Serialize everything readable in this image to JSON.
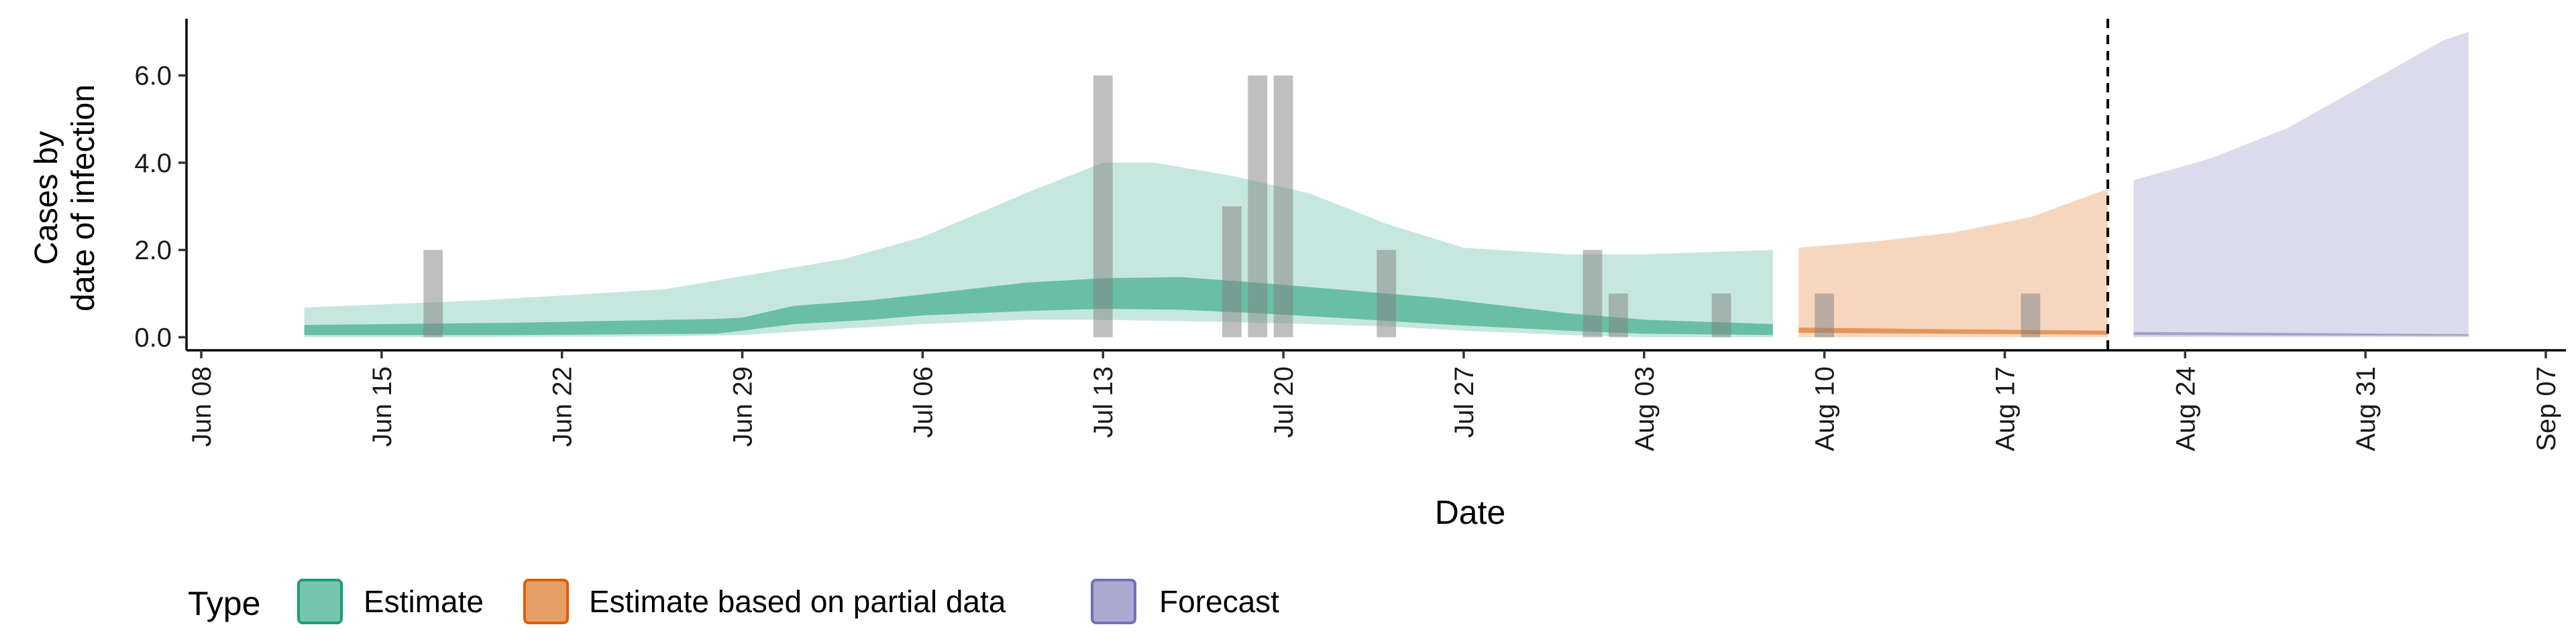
{
  "chart_data": {
    "type": "area",
    "title": "",
    "xlabel": "Date",
    "ylabel_lines": [
      "Cases by",
      "date of infection"
    ],
    "ylim": [
      -0.3,
      7.3
    ],
    "yticks": [
      {
        "value": 0,
        "label": "0.0"
      },
      {
        "value": 2,
        "label": "2.0"
      },
      {
        "value": 4,
        "label": "4.0"
      },
      {
        "value": 6,
        "label": "6.0"
      }
    ],
    "xlim": [
      "2020-06-08",
      "2020-09-07"
    ],
    "xticks": [
      {
        "date": "2020-06-08",
        "label": "Jun 08"
      },
      {
        "date": "2020-06-15",
        "label": "Jun 15"
      },
      {
        "date": "2020-06-22",
        "label": "Jun 22"
      },
      {
        "date": "2020-06-29",
        "label": "Jun 29"
      },
      {
        "date": "2020-07-06",
        "label": "Jul 06"
      },
      {
        "date": "2020-07-13",
        "label": "Jul 13"
      },
      {
        "date": "2020-07-20",
        "label": "Jul 20"
      },
      {
        "date": "2020-07-27",
        "label": "Jul 27"
      },
      {
        "date": "2020-08-03",
        "label": "Aug 03"
      },
      {
        "date": "2020-08-10",
        "label": "Aug 10"
      },
      {
        "date": "2020-08-17",
        "label": "Aug 17"
      },
      {
        "date": "2020-08-24",
        "label": "Aug 24"
      },
      {
        "date": "2020-08-31",
        "label": "Aug 31"
      },
      {
        "date": "2020-09-07",
        "label": "Sep 07"
      }
    ],
    "forecast_line_date": "2020-08-21",
    "observed_cases": [
      {
        "date": "2020-06-17",
        "value": 2
      },
      {
        "date": "2020-07-13",
        "value": 6
      },
      {
        "date": "2020-07-18",
        "value": 3
      },
      {
        "date": "2020-07-19",
        "value": 6
      },
      {
        "date": "2020-07-20",
        "value": 6
      },
      {
        "date": "2020-07-24",
        "value": 2
      },
      {
        "date": "2020-08-01",
        "value": 2
      },
      {
        "date": "2020-08-02",
        "value": 1
      },
      {
        "date": "2020-08-06",
        "value": 1
      },
      {
        "date": "2020-08-10",
        "value": 1
      },
      {
        "date": "2020-08-18",
        "value": 1
      }
    ],
    "series": [
      {
        "name": "Estimate",
        "color": "#1b9e77",
        "outer": [
          [
            "2020-06-12",
            0.0,
            0.68
          ],
          [
            "2020-06-19",
            0.0,
            0.85
          ],
          [
            "2020-06-26",
            0.02,
            1.1
          ],
          [
            "2020-06-29",
            0.05,
            1.4
          ],
          [
            "2020-07-03",
            0.2,
            1.8
          ],
          [
            "2020-07-06",
            0.3,
            2.3
          ],
          [
            "2020-07-10",
            0.4,
            3.3
          ],
          [
            "2020-07-13",
            0.4,
            4.0
          ],
          [
            "2020-07-15",
            0.38,
            4.0
          ],
          [
            "2020-07-18",
            0.35,
            3.7
          ],
          [
            "2020-07-21",
            0.3,
            3.3
          ],
          [
            "2020-07-24",
            0.25,
            2.6
          ],
          [
            "2020-07-27",
            0.15,
            2.05
          ],
          [
            "2020-07-31",
            0.05,
            1.9
          ],
          [
            "2020-08-03",
            0.0,
            1.9
          ],
          [
            "2020-08-08",
            0.0,
            2.0
          ]
        ],
        "inner": [
          [
            "2020-06-12",
            0.05,
            0.28
          ],
          [
            "2020-06-20",
            0.05,
            0.33
          ],
          [
            "2020-06-28",
            0.08,
            0.42
          ],
          [
            "2020-06-29",
            0.15,
            0.45
          ],
          [
            "2020-07-01",
            0.3,
            0.72
          ],
          [
            "2020-07-04",
            0.4,
            0.85
          ],
          [
            "2020-07-06",
            0.5,
            0.98
          ],
          [
            "2020-07-10",
            0.6,
            1.25
          ],
          [
            "2020-07-13",
            0.65,
            1.35
          ],
          [
            "2020-07-16",
            0.63,
            1.38
          ],
          [
            "2020-07-19",
            0.55,
            1.25
          ],
          [
            "2020-07-22",
            0.45,
            1.1
          ],
          [
            "2020-07-26",
            0.3,
            0.9
          ],
          [
            "2020-07-31",
            0.15,
            0.55
          ],
          [
            "2020-08-03",
            0.08,
            0.4
          ],
          [
            "2020-08-08",
            0.05,
            0.3
          ]
        ]
      },
      {
        "name": "Estimate based on partial data",
        "color": "#d95f02",
        "outer": [
          [
            "2020-08-09",
            0.0,
            2.05
          ],
          [
            "2020-08-12",
            0.0,
            2.2
          ],
          [
            "2020-08-15",
            0.0,
            2.4
          ],
          [
            "2020-08-18",
            0.0,
            2.75
          ],
          [
            "2020-08-21",
            0.0,
            3.4
          ]
        ],
        "inner": [
          [
            "2020-08-09",
            0.1,
            0.22
          ],
          [
            "2020-08-15",
            0.08,
            0.18
          ],
          [
            "2020-08-21",
            0.06,
            0.15
          ]
        ]
      },
      {
        "name": "Forecast",
        "color": "#7570b3",
        "outer": [
          [
            "2020-08-22",
            0.0,
            3.6
          ],
          [
            "2020-08-25",
            0.0,
            4.1
          ],
          [
            "2020-08-28",
            0.0,
            4.8
          ],
          [
            "2020-08-31",
            0.0,
            5.8
          ],
          [
            "2020-09-03",
            0.0,
            6.8
          ],
          [
            "2020-09-04",
            0.0,
            7.0
          ]
        ],
        "inner": [
          [
            "2020-08-22",
            0.05,
            0.12
          ],
          [
            "2020-09-04",
            0.03,
            0.07
          ]
        ]
      }
    ],
    "legend": {
      "title": "Type",
      "position": "bottom",
      "entries": [
        "Estimate",
        "Estimate based on partial data",
        "Forecast"
      ]
    }
  }
}
